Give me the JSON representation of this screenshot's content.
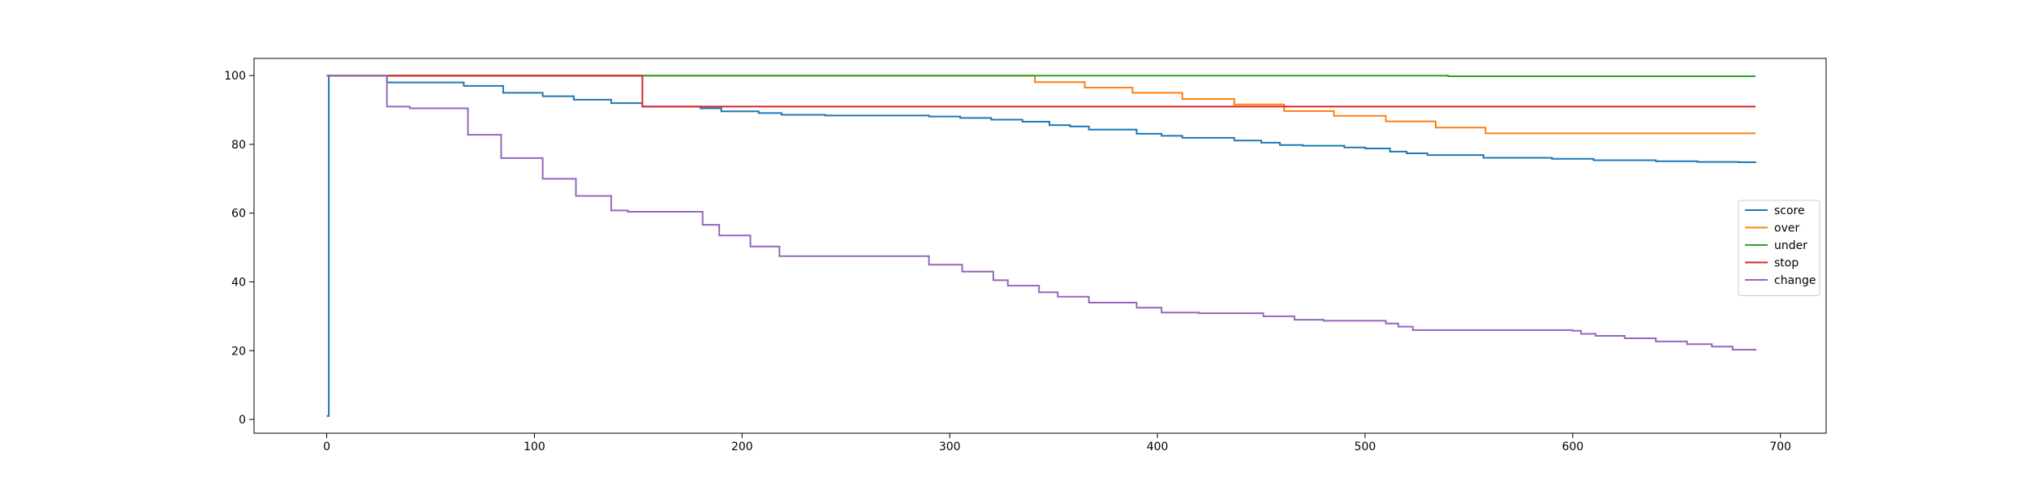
{
  "chart_data": {
    "type": "line",
    "title": "",
    "xlabel": "",
    "ylabel": "",
    "xlim": [
      -35,
      722
    ],
    "ylim": [
      -4,
      105
    ],
    "x_ticks": [
      0,
      100,
      200,
      300,
      400,
      500,
      600,
      700
    ],
    "y_ticks": [
      0,
      20,
      40,
      60,
      80,
      100
    ],
    "grid": false,
    "legend_position": "center-right",
    "series": [
      {
        "name": "score",
        "color": "#1f77b4",
        "step": true,
        "points": [
          [
            0,
            1
          ],
          [
            1,
            100
          ],
          [
            29,
            98
          ],
          [
            66,
            97
          ],
          [
            85,
            95
          ],
          [
            104,
            94
          ],
          [
            119,
            93
          ],
          [
            137,
            92
          ],
          [
            152,
            91
          ],
          [
            180,
            90.5
          ],
          [
            190,
            89.6
          ],
          [
            208,
            89.1
          ],
          [
            219,
            88.6
          ],
          [
            240,
            88.4
          ],
          [
            290,
            88.1
          ],
          [
            305,
            87.7
          ],
          [
            320,
            87.2
          ],
          [
            335,
            86.6
          ],
          [
            348,
            85.6
          ],
          [
            358,
            85.2
          ],
          [
            367,
            84.3
          ],
          [
            390,
            83.1
          ],
          [
            402,
            82.5
          ],
          [
            412,
            81.9
          ],
          [
            437,
            81.1
          ],
          [
            450,
            80.5
          ],
          [
            459,
            79.8
          ],
          [
            470,
            79.6
          ],
          [
            490,
            79.1
          ],
          [
            500,
            78.8
          ],
          [
            512,
            77.9
          ],
          [
            520,
            77.4
          ],
          [
            530,
            76.9
          ],
          [
            557,
            76.1
          ],
          [
            590,
            75.8
          ],
          [
            610,
            75.4
          ],
          [
            640,
            75.1
          ],
          [
            660,
            74.9
          ],
          [
            680,
            74.8
          ],
          [
            688,
            74.6
          ]
        ]
      },
      {
        "name": "over",
        "color": "#ff7f0e",
        "step": true,
        "points": [
          [
            0,
            100
          ],
          [
            341,
            98.1
          ],
          [
            365,
            96.5
          ],
          [
            388,
            95
          ],
          [
            412,
            93.2
          ],
          [
            437,
            91.6
          ],
          [
            461,
            89.7
          ],
          [
            485,
            88.3
          ],
          [
            510,
            86.7
          ],
          [
            534,
            84.9
          ],
          [
            558,
            83.2
          ],
          [
            688,
            83.2
          ]
        ]
      },
      {
        "name": "under",
        "color": "#2ca02c",
        "step": true,
        "points": [
          [
            0,
            100
          ],
          [
            500,
            100
          ],
          [
            540,
            99.8
          ],
          [
            688,
            99.8
          ]
        ]
      },
      {
        "name": "stop",
        "color": "#d62728",
        "step": true,
        "points": [
          [
            0,
            100
          ],
          [
            152,
            91
          ],
          [
            688,
            91
          ]
        ]
      },
      {
        "name": "change",
        "color": "#9467bd",
        "step": true,
        "points": [
          [
            0,
            100
          ],
          [
            29,
            91
          ],
          [
            40,
            90.5
          ],
          [
            68,
            82.8
          ],
          [
            84,
            76
          ],
          [
            104,
            70
          ],
          [
            120,
            65
          ],
          [
            137,
            60.8
          ],
          [
            145,
            60.4
          ],
          [
            181,
            56.6
          ],
          [
            189,
            53.5
          ],
          [
            204,
            50.3
          ],
          [
            218,
            47.5
          ],
          [
            290,
            45
          ],
          [
            306,
            43
          ],
          [
            321,
            40.5
          ],
          [
            328,
            38.9
          ],
          [
            343,
            37
          ],
          [
            352,
            35.7
          ],
          [
            367,
            34
          ],
          [
            390,
            32.5
          ],
          [
            402,
            31.1
          ],
          [
            420,
            30.9
          ],
          [
            451,
            30
          ],
          [
            466,
            29
          ],
          [
            480,
            28.7
          ],
          [
            510,
            27.9
          ],
          [
            516,
            27
          ],
          [
            523,
            26
          ],
          [
            600,
            25.8
          ],
          [
            604,
            24.9
          ],
          [
            611,
            24.3
          ],
          [
            625,
            23.6
          ],
          [
            640,
            22.7
          ],
          [
            655,
            21.9
          ],
          [
            667,
            21.2
          ],
          [
            677,
            20.3
          ],
          [
            688,
            20
          ]
        ]
      }
    ]
  }
}
